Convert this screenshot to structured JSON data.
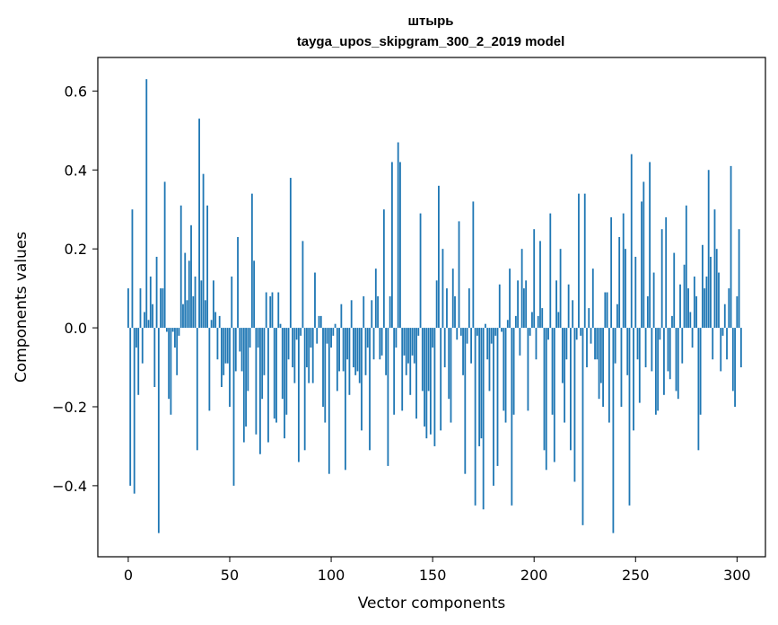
{
  "chart_data": {
    "type": "bar",
    "title": "штырь",
    "subtitle": "tayga_upos_skipgram_300_2_2019 model",
    "xlabel": "Vector components",
    "ylabel": "Components values",
    "xlim": [
      -15,
      314
    ],
    "ylim": [
      -0.58,
      0.685
    ],
    "xticks": [
      0,
      50,
      100,
      150,
      200,
      250,
      300
    ],
    "yticks": [
      -0.4,
      -0.2,
      0.0,
      0.2,
      0.4,
      0.6
    ],
    "ytick_labels": [
      "−0.4",
      "−0.2",
      "0.0",
      "0.2",
      "0.4",
      "0.6"
    ],
    "bar_color": "#1f77b4",
    "values": [
      0.1,
      -0.4,
      0.3,
      -0.42,
      -0.05,
      -0.17,
      0.1,
      -0.09,
      0.04,
      0.63,
      0.02,
      0.13,
      0.06,
      -0.15,
      0.18,
      -0.52,
      0.1,
      0.1,
      0.37,
      -0.01,
      -0.18,
      -0.22,
      -0.01,
      -0.05,
      -0.12,
      -0.02,
      0.31,
      0.06,
      0.19,
      0.07,
      0.17,
      0.26,
      0.08,
      0.13,
      -0.31,
      0.53,
      0.12,
      0.39,
      0.07,
      0.31,
      -0.21,
      0.02,
      0.12,
      0.04,
      -0.08,
      0.03,
      -0.15,
      -0.12,
      -0.09,
      -0.09,
      -0.2,
      0.13,
      -0.4,
      -0.11,
      0.23,
      -0.06,
      -0.11,
      -0.29,
      -0.25,
      -0.16,
      -0.05,
      0.34,
      0.17,
      -0.27,
      -0.05,
      -0.32,
      -0.18,
      -0.12,
      0.09,
      -0.29,
      0.08,
      0.09,
      -0.23,
      -0.24,
      0.09,
      0.01,
      -0.18,
      -0.28,
      -0.22,
      -0.08,
      0.38,
      -0.1,
      -0.14,
      -0.03,
      -0.34,
      -0.02,
      0.22,
      -0.31,
      -0.1,
      -0.14,
      -0.05,
      -0.14,
      0.14,
      -0.04,
      0.03,
      0.03,
      -0.2,
      -0.24,
      -0.04,
      -0.37,
      -0.05,
      -0.02,
      0.01,
      -0.16,
      -0.11,
      0.06,
      -0.11,
      -0.36,
      -0.08,
      -0.17,
      0.07,
      -0.1,
      -0.12,
      -0.11,
      -0.14,
      -0.26,
      0.08,
      -0.12,
      -0.05,
      -0.31,
      0.07,
      -0.08,
      0.15,
      0.08,
      -0.08,
      -0.07,
      0.3,
      -0.12,
      -0.35,
      0.08,
      0.42,
      -0.22,
      -0.05,
      0.47,
      0.42,
      -0.21,
      -0.07,
      -0.12,
      -0.09,
      -0.17,
      -0.07,
      -0.09,
      -0.23,
      -0.02,
      0.29,
      -0.16,
      -0.25,
      -0.28,
      -0.16,
      -0.27,
      -0.05,
      -0.3,
      0.12,
      0.36,
      -0.26,
      0.2,
      -0.1,
      0.1,
      -0.18,
      -0.24,
      0.15,
      0.08,
      -0.03,
      0.27,
      -0.02,
      -0.12,
      -0.37,
      -0.04,
      0.1,
      -0.09,
      0.32,
      -0.45,
      -0.02,
      -0.3,
      -0.28,
      -0.46,
      0.01,
      -0.08,
      -0.16,
      -0.04,
      -0.4,
      -0.02,
      -0.35,
      0.11,
      -0.01,
      -0.21,
      -0.24,
      0.02,
      0.15,
      -0.45,
      -0.22,
      0.03,
      0.12,
      -0.07,
      0.2,
      0.1,
      0.12,
      -0.21,
      -0.02,
      0.04,
      0.25,
      -0.08,
      0.03,
      0.22,
      0.05,
      -0.31,
      -0.36,
      -0.03,
      0.29,
      -0.22,
      -0.34,
      0.12,
      0.04,
      0.2,
      -0.14,
      -0.24,
      -0.08,
      0.11,
      -0.31,
      0.07,
      -0.39,
      -0.03,
      0.34,
      -0.02,
      -0.5,
      0.34,
      -0.1,
      0.05,
      -0.04,
      0.15,
      -0.08,
      -0.08,
      -0.18,
      -0.14,
      -0.2,
      0.09,
      0.09,
      -0.24,
      0.28,
      -0.52,
      -0.09,
      0.06,
      0.23,
      -0.2,
      0.29,
      0.2,
      -0.12,
      -0.45,
      0.44,
      -0.26,
      0.18,
      -0.08,
      -0.19,
      0.32,
      0.37,
      -0.1,
      0.08,
      0.42,
      -0.11,
      0.14,
      -0.22,
      -0.21,
      -0.03,
      0.25,
      -0.17,
      0.28,
      -0.11,
      -0.13,
      0.03,
      0.19,
      -0.16,
      -0.18,
      0.11,
      -0.09,
      0.16,
      0.31,
      0.1,
      0.04,
      -0.05,
      0.13,
      0.08,
      -0.31,
      -0.22,
      0.21,
      0.1,
      0.13,
      0.4,
      0.18,
      -0.08,
      0.3,
      0.2,
      0.14,
      -0.11,
      -0.02,
      0.06,
      -0.08,
      0.1,
      0.41,
      -0.16,
      -0.2,
      0.08,
      0.25,
      -0.1
    ]
  }
}
